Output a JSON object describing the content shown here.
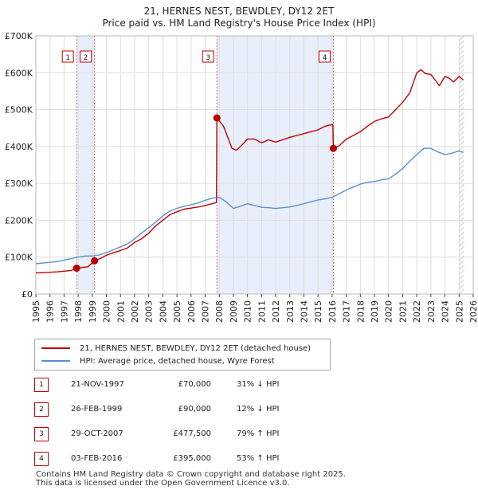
{
  "chart_data": {
    "type": "line",
    "title": "21, HERNES NEST, BEWDLEY, DY12 2ET",
    "subtitle": "Price paid vs. HM Land Registry's House Price Index (HPI)",
    "xlim": [
      1995,
      2026
    ],
    "ylim": [
      0,
      700000
    ],
    "x_ticks": [
      1995,
      1996,
      1997,
      1998,
      1999,
      2000,
      2001,
      2002,
      2003,
      2004,
      2005,
      2006,
      2007,
      2008,
      2009,
      2010,
      2011,
      2012,
      2013,
      2014,
      2015,
      2016,
      2017,
      2018,
      2019,
      2020,
      2021,
      2022,
      2023,
      2024,
      2025,
      2026
    ],
    "y_ticks": [
      {
        "value": 0,
        "label": "£0"
      },
      {
        "value": 100000,
        "label": "£100K"
      },
      {
        "value": 200000,
        "label": "£200K"
      },
      {
        "value": 300000,
        "label": "£300K"
      },
      {
        "value": 400000,
        "label": "£400K"
      },
      {
        "value": 500000,
        "label": "£500K"
      },
      {
        "value": 600000,
        "label": "£600K"
      },
      {
        "value": 700000,
        "label": "£700K"
      }
    ],
    "grid": true,
    "shaded_periods": [
      [
        1997.89,
        1999.16
      ],
      [
        2007.83,
        2016.09
      ]
    ],
    "forecast_start": 2025.0,
    "series": [
      {
        "name": "21, HERNES NEST, BEWDLEY, DY12 2ET (detached house)",
        "color": "#c00000",
        "x": [
          1995,
          1995.5,
          1996,
          1996.5,
          1997,
          1997.5,
          1997.89,
          1998.3,
          1998.7,
          1999.16,
          1999.6,
          2000,
          2000.5,
          2001,
          2001.5,
          2002,
          2002.5,
          2003,
          2003.5,
          2004,
          2004.5,
          2005,
          2005.5,
          2006,
          2006.5,
          2007,
          2007.5,
          2007.8,
          2007.83,
          2008,
          2008.3,
          2008.6,
          2008.9,
          2009.2,
          2009.5,
          2010,
          2010.5,
          2011,
          2011.5,
          2012,
          2012.5,
          2013,
          2013.5,
          2014,
          2014.5,
          2015,
          2015.5,
          2016.05,
          2016.09,
          2016.5,
          2017,
          2017.5,
          2018,
          2018.5,
          2019,
          2019.5,
          2020,
          2020.5,
          2021,
          2021.5,
          2022,
          2022.3,
          2022.6,
          2023,
          2023.3,
          2023.6,
          2024,
          2024.3,
          2024.6,
          2025,
          2025.3
        ],
        "y": [
          57000,
          58000,
          59000,
          60000,
          62000,
          64000,
          70000,
          72000,
          74000,
          90000,
          97000,
          105000,
          112000,
          118000,
          125000,
          140000,
          150000,
          165000,
          185000,
          200000,
          215000,
          223000,
          230000,
          233000,
          236000,
          240000,
          245000,
          248000,
          477500,
          470000,
          455000,
          425000,
          395000,
          390000,
          400000,
          420000,
          420000,
          410000,
          418000,
          412000,
          418000,
          425000,
          430000,
          435000,
          440000,
          445000,
          455000,
          460000,
          395000,
          402000,
          420000,
          430000,
          440000,
          455000,
          468000,
          475000,
          480000,
          500000,
          520000,
          545000,
          600000,
          608000,
          598000,
          595000,
          580000,
          565000,
          590000,
          585000,
          575000,
          590000,
          580000
        ]
      },
      {
        "name": "HPI: Average price, detached house, Wyre Forest",
        "color": "#5b8fcc",
        "x": [
          1995,
          1995.5,
          1996,
          1996.5,
          1997,
          1997.5,
          1998,
          1998.5,
          1999,
          1999.5,
          2000,
          2000.5,
          2001,
          2001.5,
          2002,
          2002.5,
          2003,
          2003.5,
          2004,
          2004.5,
          2005,
          2005.5,
          2006,
          2006.5,
          2007,
          2007.5,
          2008,
          2008.5,
          2009,
          2009.5,
          2010,
          2010.5,
          2011,
          2011.5,
          2012,
          2012.5,
          2013,
          2013.5,
          2014,
          2014.5,
          2015,
          2015.5,
          2016,
          2016.5,
          2017,
          2017.5,
          2018,
          2018.5,
          2019,
          2019.5,
          2020,
          2020.5,
          2021,
          2021.5,
          2022,
          2022.5,
          2023,
          2023.5,
          2024,
          2024.5,
          2025,
          2025.3
        ],
        "y": [
          82000,
          84000,
          86000,
          88000,
          92000,
          96000,
          100000,
          103000,
          103000,
          106000,
          112000,
          120000,
          128000,
          136000,
          150000,
          165000,
          180000,
          195000,
          212000,
          225000,
          232000,
          238000,
          242000,
          247000,
          254000,
          260000,
          262000,
          250000,
          232000,
          238000,
          245000,
          240000,
          235000,
          234000,
          232000,
          234000,
          236000,
          240000,
          245000,
          250000,
          255000,
          258000,
          262000,
          272000,
          282000,
          290000,
          298000,
          303000,
          305000,
          310000,
          312000,
          325000,
          340000,
          360000,
          378000,
          395000,
          395000,
          385000,
          378000,
          382000,
          388000,
          384000
        ]
      }
    ],
    "sales": [
      {
        "n": "1",
        "x": 1997.89,
        "y": 70000
      },
      {
        "n": "2",
        "x": 1999.16,
        "y": 90000
      },
      {
        "n": "3",
        "x": 2007.83,
        "y": 477500
      },
      {
        "n": "4",
        "x": 2016.09,
        "y": 395000
      }
    ]
  },
  "title": {
    "line1": "21, HERNES NEST, BEWDLEY, DY12 2ET",
    "line2": "Price paid vs. HM Land Registry's House Price Index (HPI)"
  },
  "legend": {
    "property_label": "21, HERNES NEST, BEWDLEY, DY12 2ET (detached house)",
    "hpi_label": "HPI: Average price, detached house, Wyre Forest"
  },
  "sales_table": [
    {
      "n": "1",
      "date": "21-NOV-1997",
      "price": "£70,000",
      "hpi": "31% ↓ HPI"
    },
    {
      "n": "2",
      "date": "26-FEB-1999",
      "price": "£90,000",
      "hpi": "12% ↓ HPI"
    },
    {
      "n": "3",
      "date": "29-OCT-2007",
      "price": "£477,500",
      "hpi": "79% ↑ HPI"
    },
    {
      "n": "4",
      "date": "03-FEB-2016",
      "price": "£395,000",
      "hpi": "53% ↑ HPI"
    }
  ],
  "footer": {
    "line1": "Contains HM Land Registry data © Crown copyright and database right 2025.",
    "line2": "This data is licensed under the Open Government Licence v3.0."
  },
  "colors": {
    "property": "#c00000",
    "hpi": "#5b8fcc",
    "shade": "#e8eefa",
    "grid": "#dddddd",
    "marker_border": "#c00000"
  }
}
